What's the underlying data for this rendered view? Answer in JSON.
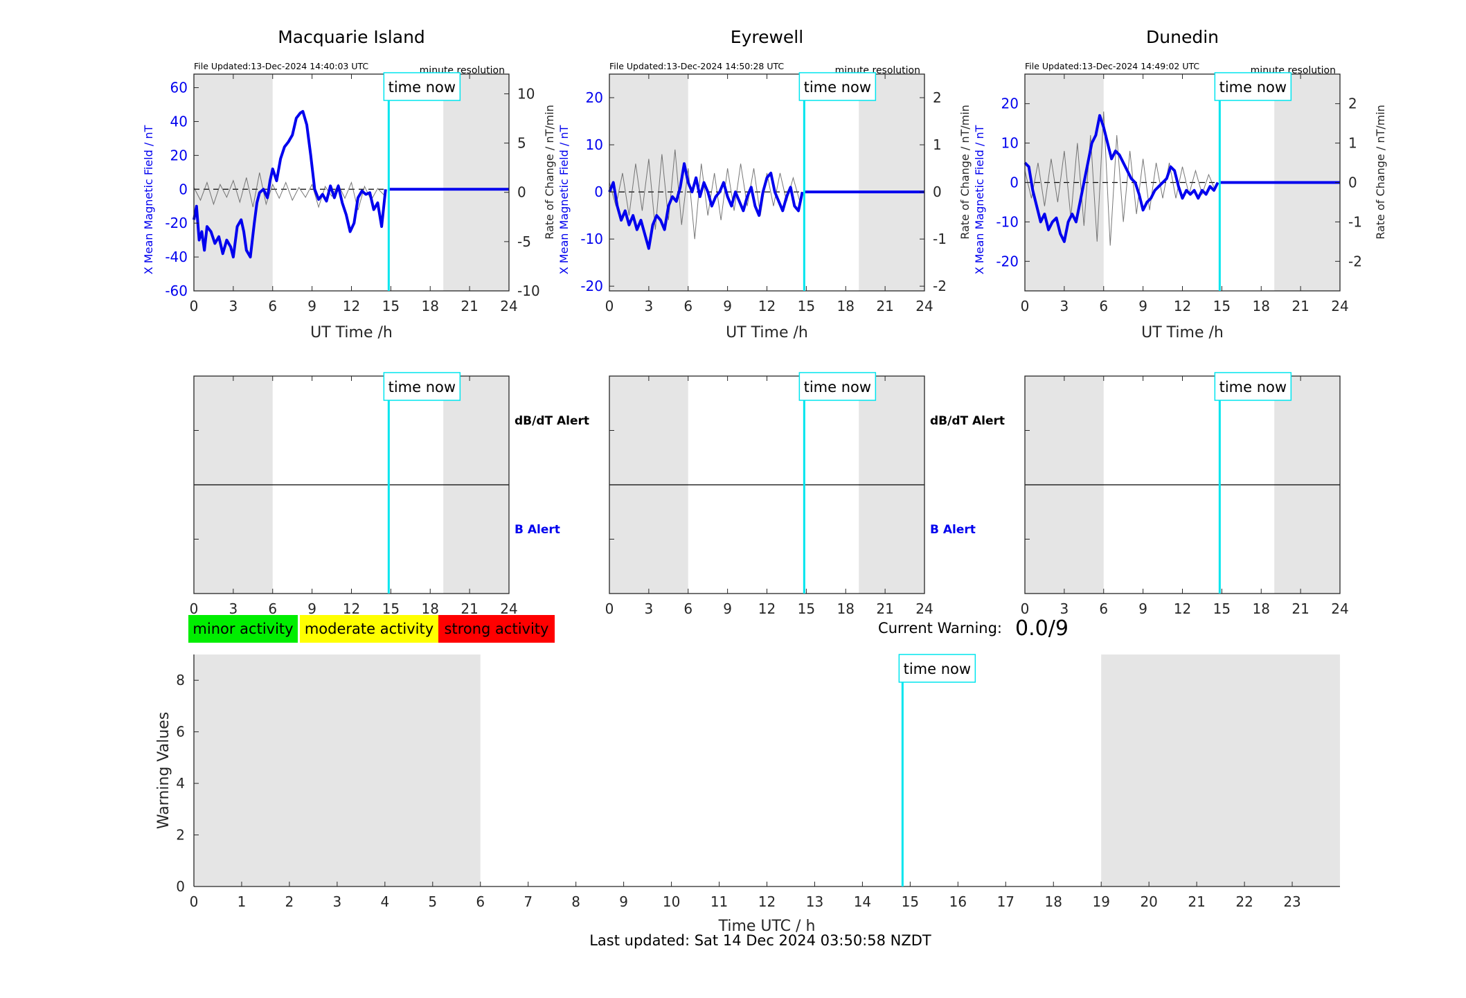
{
  "time_now_label": "time now",
  "time_now_h": 14.84,
  "colors": {
    "shade": "#e5e5e5",
    "field": "#0000ee",
    "rate": "#555555",
    "time_now": "#00e5ee",
    "minor": "#00ee00",
    "moderate": "#ffff00",
    "strong": "#ff0000"
  },
  "stations": [
    {
      "title": "Macquarie Island",
      "file_updated": "File Updated:13-Dec-2024 14:40:03 UTC",
      "resolution": "minute resolution",
      "ylabel_left": "X Mean Magnetic Field / nT",
      "ylabel_right": "Rate of Change / nT/min",
      "xlabel": "UT Time /h",
      "alert_top": "dB/dT Alert",
      "alert_bottom": "B Alert",
      "show_alert_labels": true
    },
    {
      "title": "Eyrewell",
      "file_updated": "File Updated:13-Dec-2024 14:50:28 UTC",
      "resolution": "minute resolution",
      "ylabel_left": "X Mean Magnetic Field / nT",
      "ylabel_right": "Rate of Change / nT/min",
      "xlabel": "UT Time /h",
      "alert_top": "dB/dT Alert",
      "alert_bottom": "B Alert",
      "show_alert_labels": true
    },
    {
      "title": "Dunedin",
      "file_updated": "File Updated:13-Dec-2024 14:49:02 UTC",
      "resolution": "minute resolution",
      "ylabel_left": "X Mean Magnetic Field / nT",
      "ylabel_right": "Rate of Change / nT/min",
      "xlabel": "UT Time /h",
      "alert_top": "",
      "alert_bottom": "",
      "show_alert_labels": false
    }
  ],
  "legend": {
    "minor": "minor activity",
    "moderate": "moderate activity",
    "strong": "strong activity"
  },
  "current_warning": {
    "label": "Current Warning:",
    "value": "0.0/9"
  },
  "footer": {
    "last_updated": "Last updated: Sat 14 Dec 2024 03:50:58 NZDT"
  },
  "chart_data": [
    {
      "type": "line",
      "title": "Macquarie Island",
      "xlabel": "UT Time /h",
      "ylabel": "X Mean Magnetic Field / nT",
      "y2label": "Rate of Change / nT/min",
      "xlim": [
        0,
        24
      ],
      "xticks": [
        0,
        3,
        6,
        9,
        12,
        15,
        18,
        21,
        24
      ],
      "ylim": [
        -60,
        68
      ],
      "yticks": [
        -60,
        -40,
        -20,
        0,
        20,
        40,
        60
      ],
      "y2lim": [
        -10,
        12
      ],
      "y2ticks": [
        -10,
        -5,
        0,
        5,
        10
      ],
      "shaded_x": [
        [
          0,
          6
        ],
        [
          19,
          24
        ]
      ],
      "series": [
        {
          "axis": "left",
          "x": [
            0,
            0.2,
            0.4,
            0.6,
            0.8,
            1.0,
            1.3,
            1.6,
            1.9,
            2.2,
            2.5,
            2.8,
            3.0,
            3.3,
            3.6,
            3.8,
            4.0,
            4.3,
            4.6,
            4.8,
            5.0,
            5.3,
            5.6,
            5.8,
            6.0,
            6.3,
            6.6,
            6.9,
            7.2,
            7.5,
            7.8,
            8.1,
            8.3,
            8.6,
            8.9,
            9.2,
            9.5,
            9.8,
            10.1,
            10.4,
            10.7,
            11.0,
            11.3,
            11.6,
            11.9,
            12.2,
            12.5,
            12.8,
            13.1,
            13.4,
            13.7,
            14.0,
            14.3,
            14.6
          ],
          "y": [
            -18,
            -10,
            -30,
            -25,
            -36,
            -22,
            -25,
            -32,
            -28,
            -38,
            -30,
            -34,
            -40,
            -22,
            -18,
            -25,
            -36,
            -40,
            -20,
            -8,
            -2,
            0,
            -5,
            5,
            12,
            5,
            18,
            25,
            28,
            32,
            42,
            45,
            46,
            38,
            20,
            0,
            -6,
            -3,
            -7,
            2,
            -5,
            2,
            -8,
            -15,
            -25,
            -20,
            -5,
            -1,
            -3,
            -2,
            -12,
            -8,
            -22,
            0
          ]
        },
        {
          "axis": "left",
          "x": [
            14.84,
            24
          ],
          "y": [
            0,
            0
          ]
        },
        {
          "axis": "right",
          "x": [
            0,
            0.5,
            1.0,
            1.5,
            2.0,
            2.5,
            3.0,
            3.5,
            4.0,
            4.5,
            5.0,
            5.5,
            6.0,
            6.5,
            7.0,
            7.5,
            8.0,
            8.5,
            9.0,
            9.5,
            10.0,
            10.5,
            11.0,
            11.5,
            12.0,
            12.5,
            13.0,
            13.5,
            14.0,
            14.5
          ],
          "y": [
            0.5,
            -0.8,
            1.0,
            -1.2,
            0.8,
            -0.5,
            1.2,
            -1.0,
            1.5,
            -1.5,
            2.0,
            -1.2,
            0.8,
            -0.6,
            1.0,
            -0.8,
            0.5,
            -0.5,
            0.8,
            -1.5,
            0.6,
            -0.4,
            0.8,
            -0.6,
            1.0,
            -1.8,
            0.6,
            -0.8,
            0.4,
            -0.3
          ]
        }
      ]
    },
    {
      "type": "line",
      "title": "Eyrewell",
      "xlabel": "UT Time /h",
      "ylabel": "X Mean Magnetic Field / nT",
      "y2label": "Rate of Change / nT/min",
      "xlim": [
        0,
        24
      ],
      "xticks": [
        0,
        3,
        6,
        9,
        12,
        15,
        18,
        21,
        24
      ],
      "ylim": [
        -21,
        25
      ],
      "yticks": [
        -20,
        -10,
        0,
        10,
        20
      ],
      "y2lim": [
        -2.1,
        2.5
      ],
      "y2ticks": [
        -2,
        -1,
        0,
        1,
        2
      ],
      "shaded_x": [
        [
          0,
          6
        ],
        [
          19,
          24
        ]
      ],
      "series": [
        {
          "axis": "left",
          "x": [
            0,
            0.3,
            0.6,
            0.9,
            1.2,
            1.5,
            1.8,
            2.1,
            2.4,
            2.7,
            3.0,
            3.3,
            3.6,
            3.9,
            4.2,
            4.5,
            4.8,
            5.1,
            5.4,
            5.7,
            6.0,
            6.3,
            6.6,
            6.9,
            7.2,
            7.5,
            7.8,
            8.1,
            8.4,
            8.7,
            9.0,
            9.3,
            9.6,
            9.9,
            10.2,
            10.5,
            10.8,
            11.1,
            11.4,
            11.7,
            12.0,
            12.3,
            12.6,
            12.9,
            13.2,
            13.5,
            13.8,
            14.1,
            14.4,
            14.7
          ],
          "y": [
            0,
            2,
            -3,
            -6,
            -4,
            -7,
            -5,
            -8,
            -6,
            -9,
            -12,
            -7,
            -5,
            -6,
            -8,
            -3,
            -1,
            -2,
            1,
            6,
            2,
            0,
            3,
            -1,
            2,
            0,
            -3,
            -1,
            0,
            2,
            -1,
            -3,
            0,
            -2,
            -4,
            -1,
            1,
            -3,
            -5,
            0,
            3,
            4,
            0,
            -2,
            -4,
            -1,
            1,
            -3,
            -4,
            0
          ]
        },
        {
          "axis": "left",
          "x": [
            14.84,
            24
          ],
          "y": [
            0,
            0
          ]
        },
        {
          "axis": "right",
          "x": [
            0,
            0.5,
            1.0,
            1.5,
            2.0,
            2.5,
            3.0,
            3.5,
            4.0,
            4.5,
            5.0,
            5.5,
            6.0,
            6.5,
            7.0,
            7.5,
            8.0,
            8.5,
            9.0,
            9.5,
            10.0,
            10.5,
            11.0,
            11.5,
            12.0,
            12.5,
            13.0,
            13.5,
            14.0,
            14.5
          ],
          "y": [
            0.2,
            -0.3,
            0.4,
            -0.5,
            0.6,
            -0.4,
            0.7,
            -0.8,
            0.8,
            -0.6,
            0.9,
            -0.7,
            0.5,
            -1.0,
            0.6,
            -0.5,
            0.4,
            -0.6,
            0.5,
            -0.4,
            0.6,
            -0.3,
            0.5,
            -0.5,
            0.4,
            -0.3,
            0.4,
            -0.2,
            0.3,
            -0.2
          ]
        }
      ]
    },
    {
      "type": "line",
      "title": "Dunedin",
      "xlabel": "UT Time /h",
      "ylabel": "X Mean Magnetic Field / nT",
      "y2label": "Rate of Change / nT/min",
      "xlim": [
        0,
        24
      ],
      "xticks": [
        0,
        3,
        6,
        9,
        12,
        15,
        18,
        21,
        24
      ],
      "ylim": [
        -27.5,
        27.5
      ],
      "yticks": [
        -20,
        -10,
        0,
        10,
        20
      ],
      "y2lim": [
        -2.75,
        2.75
      ],
      "y2ticks": [
        -2,
        -1,
        0,
        1,
        2
      ],
      "shaded_x": [
        [
          0,
          6
        ],
        [
          19,
          24
        ]
      ],
      "series": [
        {
          "axis": "left",
          "x": [
            0,
            0.3,
            0.6,
            0.9,
            1.2,
            1.5,
            1.8,
            2.1,
            2.4,
            2.7,
            3.0,
            3.3,
            3.6,
            3.9,
            4.2,
            4.5,
            4.8,
            5.1,
            5.4,
            5.7,
            6.0,
            6.3,
            6.6,
            6.9,
            7.2,
            7.5,
            7.8,
            8.1,
            8.4,
            8.7,
            9.0,
            9.3,
            9.6,
            9.9,
            10.2,
            10.5,
            10.8,
            11.1,
            11.4,
            11.7,
            12.0,
            12.3,
            12.6,
            12.9,
            13.2,
            13.5,
            13.8,
            14.1,
            14.4,
            14.7
          ],
          "y": [
            5,
            4,
            -2,
            -6,
            -10,
            -8,
            -12,
            -10,
            -9,
            -13,
            -15,
            -10,
            -8,
            -10,
            -5,
            0,
            5,
            10,
            12,
            17,
            14,
            10,
            6,
            8,
            7,
            5,
            3,
            1,
            0,
            -3,
            -7,
            -5,
            -4,
            -2,
            -1,
            0,
            1,
            4,
            3,
            -1,
            -4,
            -2,
            -3,
            -2,
            -4,
            -2,
            -3,
            -1,
            -2,
            0
          ]
        },
        {
          "axis": "left",
          "x": [
            14.84,
            24
          ],
          "y": [
            0,
            0
          ]
        },
        {
          "axis": "right",
          "x": [
            0,
            0.5,
            1.0,
            1.5,
            2.0,
            2.5,
            3.0,
            3.5,
            4.0,
            4.5,
            5.0,
            5.5,
            6.0,
            6.5,
            7.0,
            7.5,
            8.0,
            8.5,
            9.0,
            9.5,
            10.0,
            10.5,
            11.0,
            11.5,
            12.0,
            12.5,
            13.0,
            13.5,
            14.0,
            14.5
          ],
          "y": [
            0.3,
            -0.4,
            0.5,
            -0.6,
            0.6,
            -0.5,
            0.8,
            -0.9,
            1.0,
            -1.1,
            1.2,
            -1.5,
            1.8,
            -1.6,
            1.2,
            -1.0,
            0.8,
            -0.8,
            0.6,
            -0.7,
            0.5,
            -0.4,
            0.5,
            -0.4,
            0.4,
            -0.3,
            0.3,
            -0.3,
            0.2,
            -0.2
          ]
        }
      ]
    },
    {
      "type": "line",
      "title": "",
      "xlabel": "UT Time /h",
      "ylabel": "",
      "xlim": [
        0,
        24
      ],
      "xticks": [
        0,
        3,
        6,
        9,
        12,
        15,
        18,
        21,
        24
      ],
      "ylim": [
        -1,
        1
      ],
      "shaded_x": [
        [
          0,
          6
        ],
        [
          19,
          24
        ]
      ],
      "series": [
        {
          "x": [
            0,
            24
          ],
          "y": [
            0,
            0
          ]
        }
      ]
    },
    {
      "type": "line",
      "title": "",
      "xlabel": "UT Time /h",
      "ylabel": "",
      "xlim": [
        0,
        24
      ],
      "xticks": [
        0,
        3,
        6,
        9,
        12,
        15,
        18,
        21,
        24
      ],
      "ylim": [
        -1,
        1
      ],
      "shaded_x": [
        [
          0,
          6
        ],
        [
          19,
          24
        ]
      ],
      "series": [
        {
          "x": [
            0,
            24
          ],
          "y": [
            0,
            0
          ]
        }
      ]
    },
    {
      "type": "line",
      "title": "",
      "xlabel": "UT Time /h",
      "ylabel": "",
      "xlim": [
        0,
        24
      ],
      "xticks": [
        0,
        3,
        6,
        9,
        12,
        15,
        18,
        21,
        24
      ],
      "ylim": [
        -1,
        1
      ],
      "shaded_x": [
        [
          0,
          6
        ],
        [
          19,
          24
        ]
      ],
      "series": [
        {
          "x": [
            0,
            24
          ],
          "y": [
            0,
            0
          ]
        }
      ]
    },
    {
      "type": "line",
      "title": "",
      "xlabel": "Time UTC / h",
      "ylabel": "Warning Values",
      "xlim": [
        0,
        24
      ],
      "xticks": [
        0,
        1,
        2,
        3,
        4,
        5,
        6,
        7,
        8,
        9,
        10,
        11,
        12,
        13,
        14,
        15,
        16,
        17,
        18,
        19,
        20,
        21,
        22,
        23
      ],
      "ylim": [
        0,
        9
      ],
      "yticks": [
        0,
        2,
        4,
        6,
        8
      ],
      "shaded_x": [
        [
          0,
          6
        ],
        [
          19,
          24
        ]
      ],
      "series": []
    }
  ]
}
